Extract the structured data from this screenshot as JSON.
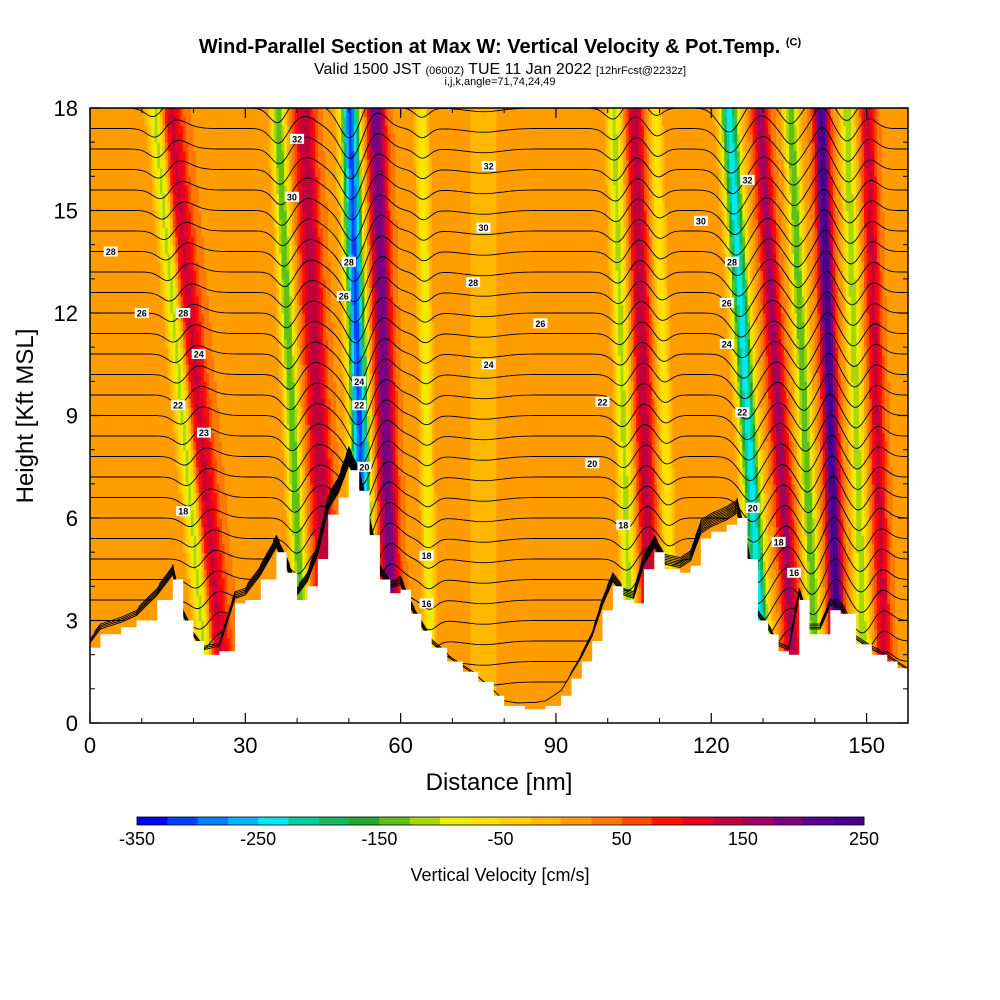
{
  "titles": {
    "main": "Wind-Parallel Section at Max W: Vertical Velocity & Pot.Temp.",
    "main_mark": "(C)",
    "valid_a": "Valid 1500 JST ",
    "valid_b": "(0600Z)",
    "valid_c": " TUE 11 Jan 2022 ",
    "valid_d": "[12hrFcst@2232z]",
    "indices": "i,j,k,angle=71,74,24,49"
  },
  "chart_data": {
    "type": "heatmap",
    "xlabel": "Distance [nm]",
    "ylabel": "Height [Kft MSL]",
    "xlim": [
      0,
      158
    ],
    "ylim": [
      0,
      18
    ],
    "x_ticks": [
      0,
      30,
      60,
      90,
      120,
      150
    ],
    "y_ticks": [
      0,
      3,
      6,
      9,
      12,
      15,
      18
    ],
    "grid": false,
    "colorbar": {
      "label": "Vertical Velocity [cm/s]",
      "placement": "bottom",
      "range": [
        -350,
        250
      ],
      "ticks": [
        -350,
        -250,
        -150,
        -50,
        50,
        150,
        250
      ],
      "colors": [
        "#0000ff",
        "#0040ff",
        "#0080ff",
        "#00b4ff",
        "#00e8f0",
        "#00d0a0",
        "#10bb60",
        "#20a830",
        "#60c018",
        "#a8d800",
        "#e8f000",
        "#ffe000",
        "#ffd000",
        "#ffb800",
        "#ff9c00",
        "#ff7800",
        "#ff4800",
        "#ff1000",
        "#e80020",
        "#c0003c",
        "#a00060",
        "#7a0080",
        "#5a0090",
        "#44008a"
      ]
    },
    "terrain_kft": [
      {
        "x": 0,
        "h": 2.2
      },
      {
        "x": 2,
        "h": 2.6
      },
      {
        "x": 6,
        "h": 2.8
      },
      {
        "x": 9,
        "h": 3.0
      },
      {
        "x": 13,
        "h": 3.6
      },
      {
        "x": 16,
        "h": 4.2
      },
      {
        "x": 18,
        "h": 3.0
      },
      {
        "x": 20,
        "h": 2.4
      },
      {
        "x": 22,
        "h": 2.0
      },
      {
        "x": 25,
        "h": 2.1
      },
      {
        "x": 28,
        "h": 3.5
      },
      {
        "x": 30,
        "h": 3.6
      },
      {
        "x": 33,
        "h": 4.2
      },
      {
        "x": 36,
        "h": 5.0
      },
      {
        "x": 38,
        "h": 4.4
      },
      {
        "x": 40,
        "h": 3.6
      },
      {
        "x": 42,
        "h": 4.0
      },
      {
        "x": 44,
        "h": 4.8
      },
      {
        "x": 46,
        "h": 6.1
      },
      {
        "x": 48,
        "h": 6.6
      },
      {
        "x": 50,
        "h": 7.4
      },
      {
        "x": 52,
        "h": 6.8
      },
      {
        "x": 54,
        "h": 5.5
      },
      {
        "x": 56,
        "h": 4.2
      },
      {
        "x": 58,
        "h": 3.8
      },
      {
        "x": 60,
        "h": 3.9
      },
      {
        "x": 62,
        "h": 3.2
      },
      {
        "x": 64,
        "h": 2.7
      },
      {
        "x": 66,
        "h": 2.2
      },
      {
        "x": 69,
        "h": 1.8
      },
      {
        "x": 72,
        "h": 1.5
      },
      {
        "x": 75,
        "h": 1.2
      },
      {
        "x": 78,
        "h": 0.8
      },
      {
        "x": 80,
        "h": 0.5
      },
      {
        "x": 84,
        "h": 0.4
      },
      {
        "x": 88,
        "h": 0.5
      },
      {
        "x": 91,
        "h": 0.8
      },
      {
        "x": 93,
        "h": 1.3
      },
      {
        "x": 95,
        "h": 1.8
      },
      {
        "x": 97,
        "h": 2.4
      },
      {
        "x": 99,
        "h": 3.3
      },
      {
        "x": 101,
        "h": 4.0
      },
      {
        "x": 103,
        "h": 3.6
      },
      {
        "x": 105,
        "h": 3.5
      },
      {
        "x": 107,
        "h": 4.5
      },
      {
        "x": 109,
        "h": 5.0
      },
      {
        "x": 111,
        "h": 4.5
      },
      {
        "x": 114,
        "h": 4.4
      },
      {
        "x": 116,
        "h": 4.6
      },
      {
        "x": 118,
        "h": 5.4
      },
      {
        "x": 120,
        "h": 5.6
      },
      {
        "x": 123,
        "h": 5.8
      },
      {
        "x": 125,
        "h": 6.0
      },
      {
        "x": 127,
        "h": 4.8
      },
      {
        "x": 129,
        "h": 3.0
      },
      {
        "x": 131,
        "h": 2.6
      },
      {
        "x": 133,
        "h": 2.1
      },
      {
        "x": 135,
        "h": 2.0
      },
      {
        "x": 137,
        "h": 3.6
      },
      {
        "x": 139,
        "h": 2.6
      },
      {
        "x": 141,
        "h": 2.6
      },
      {
        "x": 143,
        "h": 3.3
      },
      {
        "x": 145,
        "h": 3.2
      },
      {
        "x": 148,
        "h": 2.3
      },
      {
        "x": 151,
        "h": 2.0
      },
      {
        "x": 154,
        "h": 1.8
      },
      {
        "x": 156,
        "h": 1.6
      },
      {
        "x": 158,
        "h": 1.4
      }
    ],
    "velocity_bands": [
      {
        "x": 18,
        "tilt": -0.6,
        "w": -140,
        "width": 1.5
      },
      {
        "x": 21,
        "tilt": -0.6,
        "w": 110,
        "width": 2.2
      },
      {
        "x": 39,
        "tilt": -0.3,
        "w": -170,
        "width": 1.4
      },
      {
        "x": 44,
        "tilt": -0.3,
        "w": 130,
        "width": 2.0
      },
      {
        "x": 52,
        "tilt": -0.2,
        "w": -330,
        "width": 1.8
      },
      {
        "x": 57,
        "tilt": -0.2,
        "w": 180,
        "width": 1.8
      },
      {
        "x": 65,
        "tilt": -0.1,
        "w": -100,
        "width": 1.2
      },
      {
        "x": 76,
        "tilt": 0.0,
        "w": -40,
        "width": 3.0
      },
      {
        "x": 103,
        "tilt": -0.2,
        "w": -130,
        "width": 1.4
      },
      {
        "x": 107,
        "tilt": -0.2,
        "w": 130,
        "width": 1.6
      },
      {
        "x": 111,
        "tilt": -0.2,
        "w": -90,
        "width": 1.2
      },
      {
        "x": 127,
        "tilt": -0.4,
        "w": -260,
        "width": 1.8
      },
      {
        "x": 133,
        "tilt": -0.4,
        "w": 140,
        "width": 1.6
      },
      {
        "x": 138,
        "tilt": -0.3,
        "w": -170,
        "width": 1.4
      },
      {
        "x": 143,
        "tilt": -0.2,
        "w": 230,
        "width": 1.4
      },
      {
        "x": 148,
        "tilt": -0.2,
        "w": -140,
        "width": 1.4
      },
      {
        "x": 152,
        "tilt": -0.2,
        "w": 110,
        "width": 1.4
      }
    ],
    "theta_contours": {
      "interval": 2,
      "range": [
        16,
        32
      ],
      "labels": [
        {
          "x": 18,
          "y": 12.0,
          "text": "28"
        },
        {
          "x": 4,
          "y": 13.8,
          "text": "28"
        },
        {
          "x": 10,
          "y": 12.0,
          "text": "26"
        },
        {
          "x": 21,
          "y": 10.8,
          "text": "24"
        },
        {
          "x": 17,
          "y": 9.3,
          "text": "22"
        },
        {
          "x": 22,
          "y": 8.5,
          "text": "23"
        },
        {
          "x": 18,
          "y": 6.2,
          "text": "18"
        },
        {
          "x": 40,
          "y": 17.1,
          "text": "32"
        },
        {
          "x": 39,
          "y": 15.4,
          "text": "30"
        },
        {
          "x": 50,
          "y": 13.5,
          "text": "28"
        },
        {
          "x": 49,
          "y": 12.5,
          "text": "26"
        },
        {
          "x": 52,
          "y": 10.0,
          "text": "24"
        },
        {
          "x": 52,
          "y": 9.3,
          "text": "22"
        },
        {
          "x": 53,
          "y": 7.5,
          "text": "20"
        },
        {
          "x": 65,
          "y": 4.9,
          "text": "18"
        },
        {
          "x": 65,
          "y": 3.5,
          "text": "16"
        },
        {
          "x": 77,
          "y": 16.3,
          "text": "32"
        },
        {
          "x": 76,
          "y": 14.5,
          "text": "30"
        },
        {
          "x": 74,
          "y": 12.9,
          "text": "28"
        },
        {
          "x": 87,
          "y": 11.7,
          "text": "26"
        },
        {
          "x": 77,
          "y": 10.5,
          "text": "24"
        },
        {
          "x": 99,
          "y": 9.4,
          "text": "22"
        },
        {
          "x": 97,
          "y": 7.6,
          "text": "20"
        },
        {
          "x": 103,
          "y": 5.8,
          "text": "18"
        },
        {
          "x": 118,
          "y": 14.7,
          "text": "30"
        },
        {
          "x": 127,
          "y": 15.9,
          "text": "32"
        },
        {
          "x": 124,
          "y": 13.5,
          "text": "28"
        },
        {
          "x": 123,
          "y": 12.3,
          "text": "26"
        },
        {
          "x": 123,
          "y": 11.1,
          "text": "24"
        },
        {
          "x": 126,
          "y": 9.1,
          "text": "22"
        },
        {
          "x": 128,
          "y": 6.3,
          "text": "20"
        },
        {
          "x": 133,
          "y": 5.3,
          "text": "18"
        },
        {
          "x": 136,
          "y": 4.4,
          "text": "16"
        }
      ]
    }
  }
}
